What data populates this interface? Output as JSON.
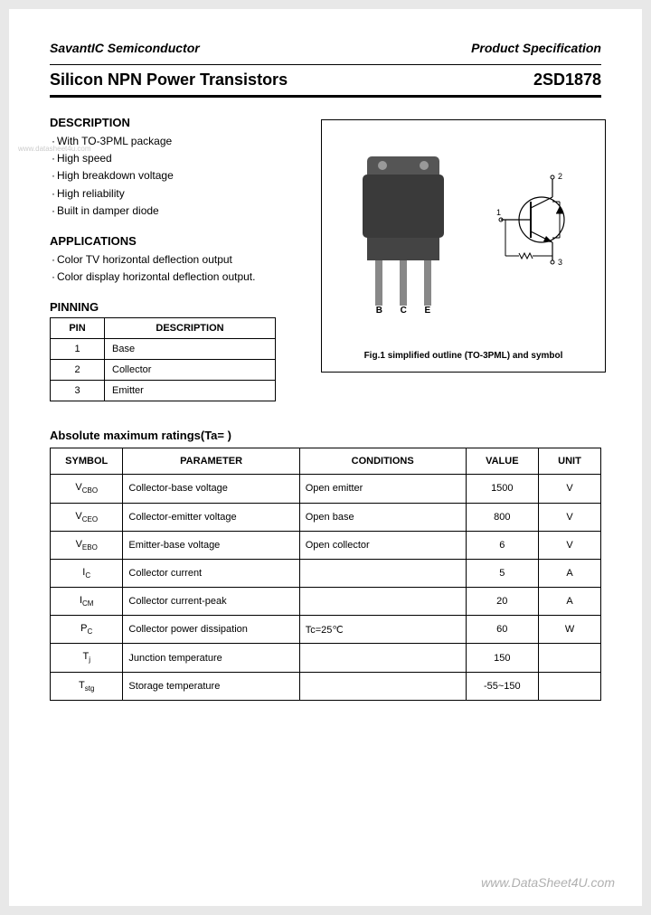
{
  "header": {
    "company": "SavantIC Semiconductor",
    "doctype": "Product Specification"
  },
  "title": {
    "left": "Silicon NPN Power Transistors",
    "right": "2SD1878"
  },
  "description": {
    "heading": "DESCRIPTION",
    "items": [
      "With TO-3PML package",
      "High speed",
      "High breakdown voltage",
      "High reliability",
      "Built in damper diode"
    ]
  },
  "applications": {
    "heading": "APPLICATIONS",
    "items": [
      "Color TV horizontal deflection output",
      "Color display horizontal deflection output."
    ]
  },
  "pinning": {
    "heading": "PINNING",
    "columns": [
      "PIN",
      "DESCRIPTION"
    ],
    "rows": [
      {
        "pin": "1",
        "desc": "Base"
      },
      {
        "pin": "2",
        "desc": "Collector"
      },
      {
        "pin": "3",
        "desc": "Emitter"
      }
    ]
  },
  "figure": {
    "leg_labels": [
      "B",
      "C",
      "E"
    ],
    "pin_nums": {
      "p1": "1",
      "p2": "2",
      "p3": "3"
    },
    "caption": "Fig.1 simplified outline (TO-3PML) and symbol"
  },
  "ratings": {
    "heading": "Absolute maximum ratings(Ta=    )",
    "columns": [
      "SYMBOL",
      "PARAMETER",
      "CONDITIONS",
      "VALUE",
      "UNIT"
    ],
    "rows": [
      {
        "sym": "V",
        "sub": "CBO",
        "param": "Collector-base voltage",
        "cond": "Open emitter",
        "val": "1500",
        "unit": "V"
      },
      {
        "sym": "V",
        "sub": "CEO",
        "param": "Collector-emitter voltage",
        "cond": "Open base",
        "val": "800",
        "unit": "V"
      },
      {
        "sym": "V",
        "sub": "EBO",
        "param": "Emitter-base voltage",
        "cond": "Open collector",
        "val": "6",
        "unit": "V"
      },
      {
        "sym": "I",
        "sub": "C",
        "param": "Collector current",
        "cond": "",
        "val": "5",
        "unit": "A"
      },
      {
        "sym": "I",
        "sub": "CM",
        "param": "Collector current-peak",
        "cond": "",
        "val": "20",
        "unit": "A"
      },
      {
        "sym": "P",
        "sub": "C",
        "param": "Collector power dissipation",
        "cond": "Tc=25℃",
        "val": "60",
        "unit": "W"
      },
      {
        "sym": "T",
        "sub": "j",
        "param": "Junction temperature",
        "cond": "",
        "val": "150",
        "unit": ""
      },
      {
        "sym": "T",
        "sub": "stg",
        "param": "Storage temperature",
        "cond": "",
        "val": "-55~150",
        "unit": ""
      }
    ]
  },
  "watermarks": {
    "left": "www.datasheet4u.com",
    "bottom": "www.DataSheet4U.com"
  },
  "colors": {
    "page_bg": "#ffffff",
    "body_bg": "#e8e8e8",
    "text": "#000000",
    "border": "#000000",
    "transistor_dark": "#3a3a3a",
    "transistor_mid": "#555555",
    "leg": "#888888",
    "watermark": "#b0b0b0"
  }
}
